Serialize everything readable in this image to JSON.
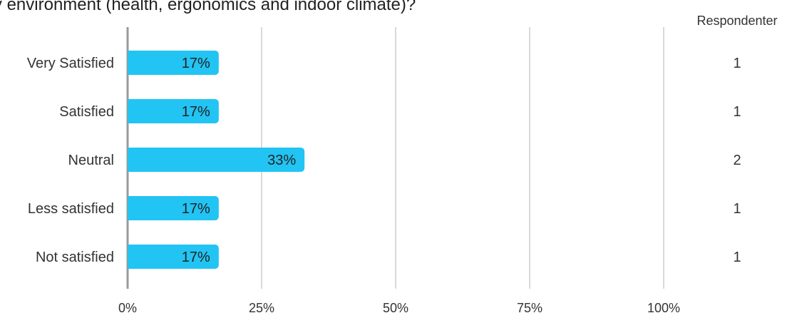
{
  "chart_data": {
    "type": "bar",
    "orientation": "horizontal",
    "title": "ice the physical study environment (health, ergonomics and indoor climate)?",
    "categories": [
      "Very Satisfied",
      "Satisfied",
      "Neutral",
      "Less satisfied",
      "Not satisfied"
    ],
    "values": [
      17,
      17,
      33,
      17,
      17
    ],
    "value_labels": [
      "17%",
      "17%",
      "33%",
      "17%",
      "17%"
    ],
    "respondents_header": "Respondenter",
    "respondents": [
      "1",
      "1",
      "2",
      "1",
      "1"
    ],
    "x_ticks": [
      0,
      25,
      50,
      75,
      100
    ],
    "x_tick_labels": [
      "0%",
      "25%",
      "50%",
      "75%",
      "100%"
    ],
    "xlim": [
      0,
      100
    ],
    "grid": true,
    "colors": {
      "bar": "#21c4f3",
      "grid": "#b3b3b3",
      "axis": "#999999",
      "text": "#333333",
      "label": "#222222"
    }
  }
}
